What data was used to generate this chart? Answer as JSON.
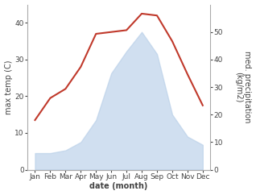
{
  "months": [
    "Jan",
    "Feb",
    "Mar",
    "Apr",
    "May",
    "Jun",
    "Jul",
    "Aug",
    "Sep",
    "Oct",
    "Nov",
    "Dec"
  ],
  "temperature": [
    13.5,
    19.5,
    22.0,
    28.0,
    37.0,
    37.5,
    38.0,
    42.5,
    42.0,
    35.0,
    26.0,
    17.5
  ],
  "precipitation": [
    6,
    6,
    7,
    10,
    18,
    35,
    43,
    50,
    42,
    20,
    12,
    9
  ],
  "temp_color": "#c0392b",
  "precip_color": "#b8cfe8",
  "precip_alpha": 0.65,
  "temp_ylim": [
    0,
    45
  ],
  "precip_ylim": [
    0,
    60
  ],
  "temp_yticks": [
    0,
    10,
    20,
    30,
    40
  ],
  "precip_yticks": [
    0,
    10,
    20,
    30,
    40,
    50
  ],
  "ylabel_left": "max temp (C)",
  "ylabel_right": "med. precipitation\n(kg/m2)",
  "xlabel": "date (month)",
  "background_color": "#ffffff",
  "spine_color": "#aaaaaa",
  "tick_color": "#444444",
  "label_fontsize": 7,
  "tick_fontsize": 6.5
}
